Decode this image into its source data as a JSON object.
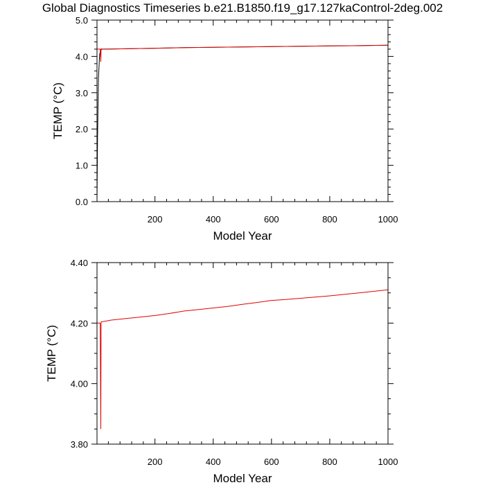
{
  "title": "Global Diagnostics Timeseries b.e21.B1850.f19_g17.127kaControl-2deg.002",
  "colors": {
    "series_black": "#000000",
    "series_red": "#e00000"
  },
  "chart_data": [
    {
      "type": "line",
      "xlabel": "Model Year",
      "ylabel": "TEMP (°C)",
      "xlim": [
        1,
        1000
      ],
      "ylim": [
        0.0,
        5.0
      ],
      "x_ticks": [
        200,
        400,
        600,
        800,
        1000
      ],
      "x_tick_labels": [
        "200",
        "400",
        "600",
        "800",
        "1000"
      ],
      "y_ticks": [
        0.0,
        1.0,
        2.0,
        3.0,
        4.0,
        5.0
      ],
      "y_tick_labels": [
        "0.0",
        "1.0",
        "2.0",
        "3.0",
        "4.0",
        "5.0"
      ],
      "grid": false,
      "series": [
        {
          "color": "#000000",
          "x": [
            1,
            3,
            6,
            10,
            14,
            20,
            50,
            100,
            200,
            300,
            400,
            500,
            600,
            700,
            800,
            900,
            1000
          ],
          "y": [
            0.0,
            1.8,
            3.4,
            4.05,
            4.19,
            4.2,
            4.205,
            4.21,
            4.225,
            4.24,
            4.25,
            4.26,
            4.27,
            4.28,
            4.29,
            4.295,
            4.31
          ]
        },
        {
          "color": "#e00000",
          "x": [
            1,
            12,
            14,
            15,
            16,
            20,
            50,
            100,
            200,
            300,
            400,
            500,
            600,
            700,
            800,
            900,
            1000
          ],
          "y": [
            4.2,
            4.2,
            3.85,
            4.2,
            4.21,
            4.2,
            4.205,
            4.21,
            4.225,
            4.24,
            4.25,
            4.26,
            4.27,
            4.28,
            4.29,
            4.295,
            4.31
          ]
        }
      ]
    },
    {
      "type": "line",
      "xlabel": "Model Year",
      "ylabel": "TEMP (°C)",
      "xlim": [
        1,
        1000
      ],
      "ylim": [
        3.8,
        4.4
      ],
      "x_ticks": [
        200,
        400,
        600,
        800,
        1000
      ],
      "x_tick_labels": [
        "200",
        "400",
        "600",
        "800",
        "1000"
      ],
      "y_ticks": [
        3.8,
        4.0,
        4.2,
        4.4
      ],
      "y_tick_labels": [
        "3.80",
        "4.00",
        "4.20",
        "4.40"
      ],
      "grid": false,
      "series": [
        {
          "color": "#e00000",
          "x": [
            1,
            12,
            14,
            15,
            16,
            20,
            50,
            100,
            150,
            200,
            250,
            300,
            350,
            400,
            450,
            500,
            550,
            600,
            650,
            700,
            750,
            800,
            850,
            900,
            950,
            1000
          ],
          "y": [
            4.2,
            4.2,
            3.85,
            4.2,
            4.205,
            4.205,
            4.21,
            4.215,
            4.22,
            4.225,
            4.232,
            4.24,
            4.245,
            4.25,
            4.255,
            4.262,
            4.268,
            4.275,
            4.278,
            4.282,
            4.286,
            4.29,
            4.295,
            4.3,
            4.305,
            4.31
          ]
        }
      ]
    }
  ]
}
